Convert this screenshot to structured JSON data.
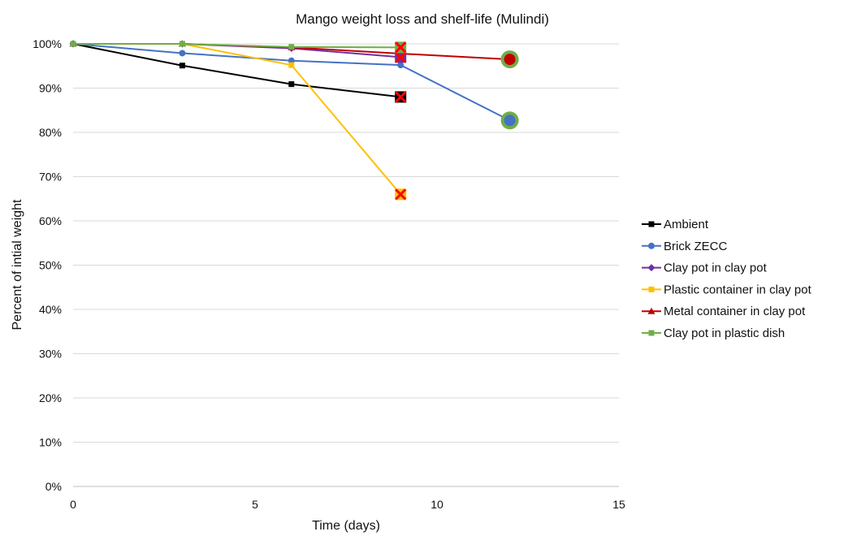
{
  "chart_data": {
    "type": "line",
    "title": "Mango weight loss and shelf-life (Mulindi)",
    "xlabel": "Time (days)",
    "ylabel": "Percent of intial weight",
    "xlim": [
      0,
      15
    ],
    "ylim": [
      0,
      100
    ],
    "x_ticks": [
      "0",
      "5",
      "10",
      "15"
    ],
    "y_ticks": [
      "0%",
      "10%",
      "20%",
      "30%",
      "40%",
      "50%",
      "60%",
      "70%",
      "80%",
      "90%",
      "100%"
    ],
    "grid": "horizontal",
    "legend_position": "right",
    "series": [
      {
        "name": "Ambient",
        "color": "#000000",
        "marker": "square",
        "points": [
          {
            "x": 0,
            "y": 100
          },
          {
            "x": 3,
            "y": 95.1
          },
          {
            "x": 6,
            "y": 90.9
          },
          {
            "x": 9,
            "y": 88
          }
        ]
      },
      {
        "name": "Brick ZECC",
        "color": "#4472C4",
        "marker": "circle",
        "points": [
          {
            "x": 0,
            "y": 100
          },
          {
            "x": 3,
            "y": 97.9
          },
          {
            "x": 6,
            "y": 96.2
          },
          {
            "x": 9,
            "y": 95.2
          },
          {
            "x": 12,
            "y": 82.7
          }
        ]
      },
      {
        "name": "Clay pot in clay pot",
        "color": "#7030A0",
        "marker": "diamond",
        "points": [
          {
            "x": 0,
            "y": 100
          },
          {
            "x": 3,
            "y": 100
          },
          {
            "x": 6,
            "y": 99
          },
          {
            "x": 9,
            "y": 97
          }
        ]
      },
      {
        "name": "Plastic container in clay pot",
        "color": "#FFC000",
        "marker": "square",
        "points": [
          {
            "x": 0,
            "y": 100
          },
          {
            "x": 3,
            "y": 100
          },
          {
            "x": 6,
            "y": 95.2
          },
          {
            "x": 9,
            "y": 66
          }
        ]
      },
      {
        "name": "Metal container in clay pot",
        "color": "#C00000",
        "marker": "triangle",
        "points": [
          {
            "x": 0,
            "y": 100
          },
          {
            "x": 3,
            "y": 100
          },
          {
            "x": 6,
            "y": 99.2
          },
          {
            "x": 9,
            "y": 97.8
          },
          {
            "x": 12,
            "y": 96.5
          }
        ]
      },
      {
        "name": "Clay pot in plastic dish",
        "color": "#70AD47",
        "marker": "square",
        "points": [
          {
            "x": 0,
            "y": 100
          },
          {
            "x": 3,
            "y": 100
          },
          {
            "x": 6,
            "y": 99.3
          },
          {
            "x": 9,
            "y": 99.2
          }
        ]
      }
    ],
    "end_markers": [
      {
        "series": "Ambient",
        "type": "x",
        "x": 9,
        "y": 88
      },
      {
        "series": "Plastic container in clay pot",
        "type": "x",
        "x": 9,
        "y": 66
      },
      {
        "series": "Clay pot in clay pot",
        "type": "x",
        "x": 9,
        "y": 97
      },
      {
        "series": "Clay pot in plastic dish",
        "type": "x",
        "x": 9,
        "y": 99.2
      },
      {
        "series": "Brick ZECC",
        "type": "circle",
        "x": 12,
        "y": 82.7
      },
      {
        "series": "Metal container in clay pot",
        "type": "circle",
        "x": 12,
        "y": 96.5
      }
    ]
  }
}
